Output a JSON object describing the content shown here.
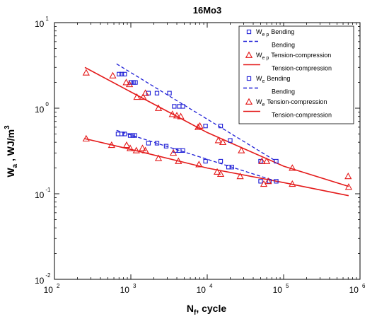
{
  "colors": {
    "blue": "#1f1fd6",
    "red": "#e41b1b"
  },
  "chart_data": {
    "type": "scatter",
    "title": "16Mo3",
    "xlabel": {
      "main": "N",
      "sub": "f",
      "suffix": ", cycle"
    },
    "ylabel": {
      "main": "W",
      "sub": "a",
      "suffix": " ,  WJ/m",
      "sup": "3"
    },
    "xscale": "log",
    "yscale": "log",
    "xlim": [
      100,
      1000000
    ],
    "ylim": [
      0.01,
      10
    ],
    "xticks": [
      {
        "value": 100,
        "base": "10",
        "exp": "2"
      },
      {
        "value": 1000,
        "base": "10",
        "exp": "3"
      },
      {
        "value": 10000,
        "base": "10",
        "exp": "4"
      },
      {
        "value": 100000,
        "base": "10",
        "exp": "5"
      },
      {
        "value": 1000000,
        "base": "10",
        "exp": "6"
      }
    ],
    "yticks": [
      {
        "value": 0.01,
        "base": "10",
        "exp": "-2"
      },
      {
        "value": 0.1,
        "base": "10",
        "exp": "-1"
      },
      {
        "value": 1,
        "base": "10",
        "exp": "0"
      },
      {
        "value": 10,
        "base": "10",
        "exp": "1"
      }
    ],
    "grid": false,
    "legend_position": "top-right",
    "series": [
      {
        "name": "W ep Bending",
        "legend_main": "W",
        "legend_sub": "e p",
        "legend_text": "Bending",
        "marker": "square",
        "color": "#1f1fd6",
        "points": [
          [
            700,
            2.5
          ],
          [
            760,
            2.5
          ],
          [
            830,
            2.5
          ],
          [
            1000,
            2.0
          ],
          [
            1080,
            2.0
          ],
          [
            1150,
            2.0
          ],
          [
            1700,
            1.5
          ],
          [
            2200,
            1.5
          ],
          [
            3200,
            1.5
          ],
          [
            3700,
            1.05
          ],
          [
            4300,
            1.05
          ],
          [
            4800,
            1.05
          ],
          [
            9500,
            0.62
          ],
          [
            15000,
            0.62
          ],
          [
            20000,
            0.42
          ],
          [
            50000,
            0.24
          ],
          [
            80000,
            0.24
          ]
        ]
      },
      {
        "name": "Bending",
        "legend_text": "Bending",
        "line": "dashed",
        "color": "#1f1fd6",
        "points": [
          [
            650,
            3.3
          ],
          [
            80000,
            0.24
          ]
        ]
      },
      {
        "name": "W ep Tension-compression",
        "legend_main": "W",
        "legend_sub": "e p",
        "legend_text": "Tension-compression",
        "marker": "triangle",
        "color": "#e41b1b",
        "points": [
          [
            260,
            2.6
          ],
          [
            580,
            2.4
          ],
          [
            870,
            2.0
          ],
          [
            960,
            1.9
          ],
          [
            1200,
            1.35
          ],
          [
            1450,
            1.35
          ],
          [
            1550,
            1.5
          ],
          [
            2300,
            1.0
          ],
          [
            3500,
            0.85
          ],
          [
            4000,
            0.82
          ],
          [
            4500,
            0.8
          ],
          [
            7600,
            0.6
          ],
          [
            8000,
            0.62
          ],
          [
            14000,
            0.42
          ],
          [
            16000,
            0.4
          ],
          [
            28000,
            0.32
          ],
          [
            52000,
            0.24
          ],
          [
            60000,
            0.24
          ],
          [
            130000,
            0.2
          ],
          [
            710000,
            0.12
          ]
        ]
      },
      {
        "name": "Tension-compression",
        "legend_text": "Tension-compression",
        "line": "solid",
        "color": "#e41b1b",
        "points": [
          [
            250,
            3.0
          ],
          [
            250,
            3.0
          ],
          [
            1000,
            1.55
          ],
          [
            10000,
            0.52
          ],
          [
            100000,
            0.21
          ],
          [
            710000,
            0.122
          ]
        ]
      },
      {
        "name": "W e Bending",
        "legend_main": "W",
        "legend_sub": "e",
        "legend_text": "Bending",
        "marker": "square",
        "color": "#1f1fd6",
        "points": [
          [
            680,
            0.5
          ],
          [
            760,
            0.5
          ],
          [
            830,
            0.5
          ],
          [
            980,
            0.48
          ],
          [
            1060,
            0.48
          ],
          [
            1130,
            0.48
          ],
          [
            1700,
            0.39
          ],
          [
            2200,
            0.39
          ],
          [
            2900,
            0.36
          ],
          [
            3800,
            0.32
          ],
          [
            4300,
            0.32
          ],
          [
            4800,
            0.32
          ],
          [
            9500,
            0.24
          ],
          [
            15000,
            0.24
          ],
          [
            19000,
            0.205
          ],
          [
            21000,
            0.205
          ],
          [
            50000,
            0.14
          ],
          [
            65000,
            0.14
          ],
          [
            80000,
            0.14
          ]
        ]
      },
      {
        "name": "Bending",
        "legend_text": "Bending",
        "line": "dashed",
        "color": "#1f1fd6",
        "points": [
          [
            650,
            0.55
          ],
          [
            80000,
            0.14
          ]
        ]
      },
      {
        "name": "W e Tension-compression",
        "legend_main": "W",
        "legend_sub": "e",
        "legend_text": "Tension-compression",
        "marker": "triangle",
        "color": "#e41b1b",
        "points": [
          [
            260,
            0.44
          ],
          [
            560,
            0.37
          ],
          [
            880,
            0.37
          ],
          [
            980,
            0.34
          ],
          [
            1180,
            0.32
          ],
          [
            1420,
            0.34
          ],
          [
            1550,
            0.32
          ],
          [
            2300,
            0.26
          ],
          [
            3600,
            0.3
          ],
          [
            4200,
            0.24
          ],
          [
            7800,
            0.22
          ],
          [
            13500,
            0.18
          ],
          [
            15000,
            0.17
          ],
          [
            27000,
            0.16
          ],
          [
            55000,
            0.13
          ],
          [
            63000,
            0.14
          ],
          [
            130000,
            0.13
          ],
          [
            700000,
            0.16
          ]
        ]
      },
      {
        "name": "Tension-compression",
        "legend_text": "Tension-compression",
        "line": "solid",
        "color": "#e41b1b",
        "points": [
          [
            250,
            0.44
          ],
          [
            1000,
            0.33
          ],
          [
            10000,
            0.2
          ],
          [
            100000,
            0.135
          ],
          [
            710000,
            0.095
          ]
        ]
      }
    ]
  }
}
